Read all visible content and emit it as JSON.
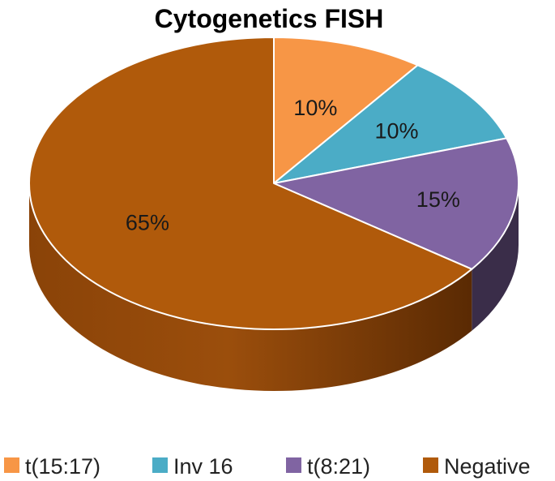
{
  "chart_data": {
    "type": "pie",
    "title": "Cytogenetics FISH",
    "categories": [
      "t(15:17)",
      "Inv 16",
      "t(8:21)",
      "Negative"
    ],
    "values": [
      10,
      10,
      15,
      65
    ],
    "labels": [
      "10%",
      "10%",
      "15%",
      "65%"
    ],
    "colors": [
      "#F79646",
      "#4BACC6",
      "#8064A2",
      "#B05A0B"
    ],
    "legend_position": "bottom",
    "style": "3d"
  }
}
